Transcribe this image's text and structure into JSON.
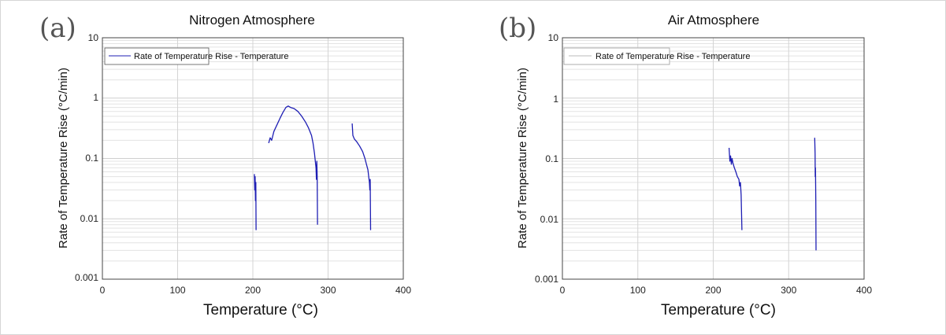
{
  "chart_data": [
    {
      "type": "line",
      "panel_label": "(a)",
      "title": "Nitrogen Atmosphere",
      "xlabel": "Temperature (°C)",
      "ylabel": "Rate of Temperature Rise (°C/min)",
      "xlim": [
        0,
        400
      ],
      "ylim": [
        0.001,
        10
      ],
      "yscale": "log",
      "x_ticks": [
        "0",
        "100",
        "200",
        "300",
        "400"
      ],
      "y_ticks": [
        "0.001",
        "0.01",
        "0.1",
        "1",
        "10"
      ],
      "grid": true,
      "legend": {
        "label": "Rate of Temperature Rise - Temperature",
        "position": "top-left"
      },
      "series_color": "#1f1fb4",
      "series": [
        {
          "name": "segment-1",
          "points": [
            [
              202,
              0.055
            ],
            [
              202.5,
              0.03
            ],
            [
              203,
              0.05
            ],
            [
              203.5,
              0.02
            ],
            [
              204,
              0.04
            ],
            [
              204.3,
              0.0065
            ]
          ]
        },
        {
          "name": "segment-2",
          "points": [
            [
              221,
              0.18
            ],
            [
              223,
              0.22
            ],
            [
              225,
              0.2
            ],
            [
              228,
              0.28
            ],
            [
              232,
              0.36
            ],
            [
              236,
              0.46
            ],
            [
              240,
              0.58
            ],
            [
              244,
              0.7
            ],
            [
              247,
              0.74
            ],
            [
              250,
              0.7
            ],
            [
              255,
              0.67
            ],
            [
              260,
              0.6
            ],
            [
              265,
              0.5
            ],
            [
              270,
              0.4
            ],
            [
              274,
              0.32
            ],
            [
              278,
              0.24
            ],
            [
              280,
              0.18
            ],
            [
              282,
              0.12
            ],
            [
              283,
              0.09
            ],
            [
              284,
              0.07
            ],
            [
              284.5,
              0.045
            ],
            [
              285,
              0.09
            ],
            [
              285.5,
              0.05
            ],
            [
              286,
              0.008
            ]
          ]
        },
        {
          "name": "segment-3",
          "points": [
            [
              332,
              0.38
            ],
            [
              333,
              0.24
            ],
            [
              335,
              0.21
            ],
            [
              338,
              0.19
            ],
            [
              342,
              0.16
            ],
            [
              346,
              0.13
            ],
            [
              349,
              0.1
            ],
            [
              351,
              0.08
            ],
            [
              353,
              0.065
            ],
            [
              354,
              0.05
            ],
            [
              355,
              0.04
            ],
            [
              355.5,
              0.03
            ],
            [
              356,
              0.045
            ],
            [
              356.5,
              0.0065
            ]
          ]
        }
      ]
    },
    {
      "type": "line",
      "panel_label": "(b)",
      "title": "Air Atmosphere",
      "xlabel": "Temperature (°C)",
      "ylabel": "Rate of Temperature Rise (°C/min)",
      "xlim": [
        0,
        400
      ],
      "ylim": [
        0.001,
        10
      ],
      "yscale": "log",
      "x_ticks": [
        "0",
        "100",
        "200",
        "300",
        "400"
      ],
      "y_ticks": [
        "0.001",
        "0.01",
        "0.1",
        "1",
        "10"
      ],
      "grid": true,
      "legend": {
        "label": "Rate of Temperature Rise - Temperature",
        "position": "top-left"
      },
      "series_color": "#1f1fb4",
      "series": [
        {
          "name": "segment-1",
          "points": [
            [
              221,
              0.15
            ],
            [
              222,
              0.09
            ],
            [
              223,
              0.11
            ],
            [
              224,
              0.08
            ],
            [
              225,
              0.1
            ],
            [
              226,
              0.085
            ],
            [
              228,
              0.07
            ],
            [
              230,
              0.06
            ],
            [
              232,
              0.05
            ],
            [
              234,
              0.045
            ],
            [
              235,
              0.035
            ],
            [
              236,
              0.04
            ],
            [
              237,
              0.025
            ],
            [
              238,
              0.0065
            ]
          ]
        },
        {
          "name": "segment-2",
          "points": [
            [
              334.5,
              0.22
            ],
            [
              335,
              0.12
            ],
            [
              335.3,
              0.05
            ],
            [
              335.6,
              0.07
            ],
            [
              336,
              0.02
            ],
            [
              336.3,
              0.003
            ]
          ]
        }
      ]
    }
  ]
}
